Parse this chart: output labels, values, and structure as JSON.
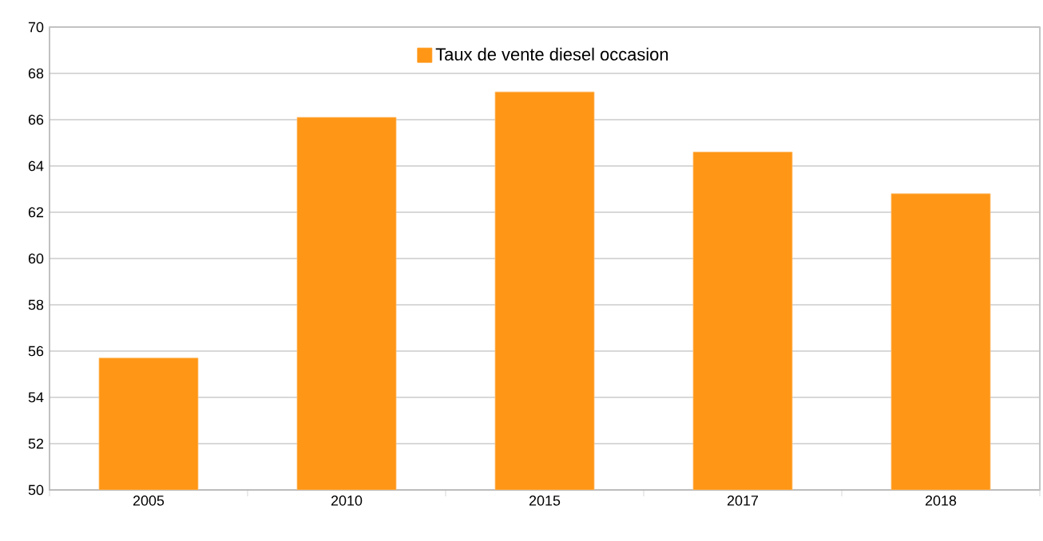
{
  "chart_data": {
    "type": "bar",
    "categories": [
      "2005",
      "2010",
      "2015",
      "2017",
      "2018"
    ],
    "series": [
      {
        "name": "Taux de vente diesel occasion",
        "color": "#ff9615",
        "values": [
          55.7,
          66.1,
          67.2,
          64.6,
          62.8
        ]
      }
    ],
    "ylim": [
      50,
      70
    ],
    "yticks": [
      50,
      52,
      54,
      56,
      58,
      60,
      62,
      64,
      66,
      68,
      70
    ],
    "grid": "y",
    "legend": "top"
  }
}
